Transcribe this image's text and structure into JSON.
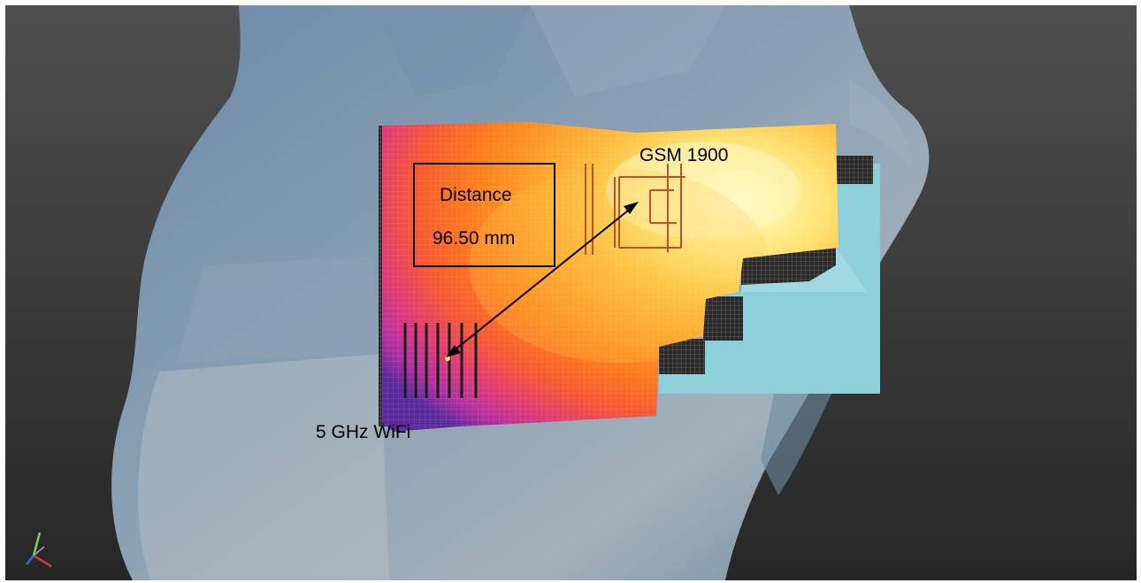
{
  "scene": {
    "background_colors": [
      "#4a4a4a",
      "#2a2a2a"
    ],
    "phantom_color": "#7f97ad",
    "flat_phantom_color": "#8fd3dc",
    "heatmap_colors": [
      "#5a2a9a",
      "#d83a8a",
      "#ff6a1a",
      "#ff9a2a",
      "#ffd04a",
      "#fff6b0"
    ]
  },
  "labels": {
    "distance_title": "Distance",
    "distance_value": "96.50 mm",
    "antenna_gsm": "GSM 1900",
    "antenna_wifi": "5 GHz WiFi"
  },
  "icons": {
    "axis_triad": "axis-triad-icon"
  }
}
